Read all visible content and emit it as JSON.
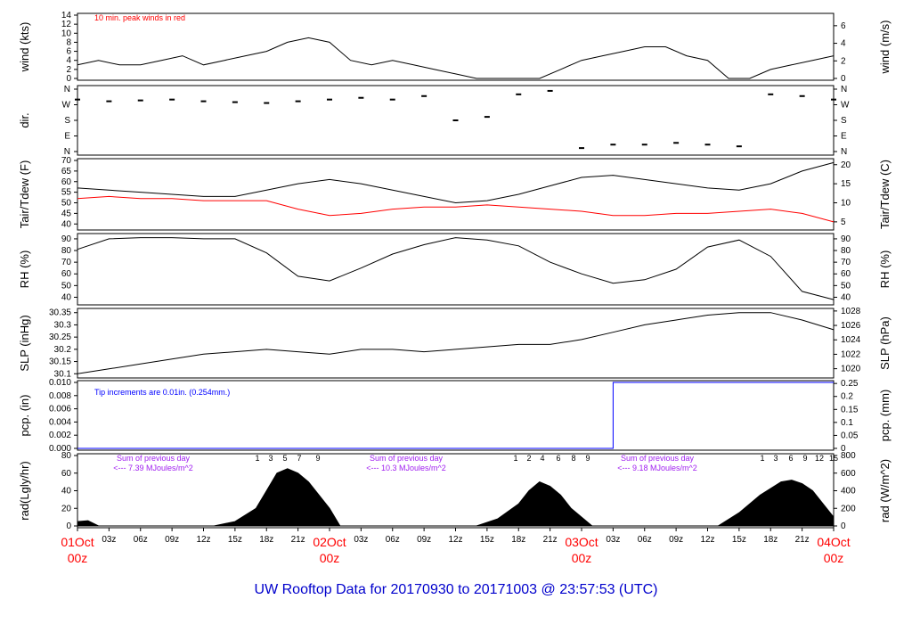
{
  "footer_title": "UW Rooftop Data for 20170930  to  20171003 @ 23:57:53  (UTC)",
  "colors": {
    "accent_red": "#ff0000",
    "precip_blue": "#0000ff",
    "rad_purple": "#a020f0",
    "title_blue": "#0000cc"
  },
  "chart_data": [
    {
      "type": "line",
      "panel": "wind",
      "ylabel": "wind (kts)",
      "ylabel_right": "wind (m/s)",
      "ylim": [
        0,
        14
      ],
      "yticks": [
        0,
        2,
        4,
        6,
        8,
        10,
        12,
        14
      ],
      "yticks_right": [
        0,
        2,
        4,
        6
      ],
      "annotation": "10 min. peak winds in red",
      "series": [
        {
          "hours": [
            0,
            2,
            4,
            6,
            8,
            10,
            12,
            14,
            16,
            18,
            20,
            22,
            24,
            26,
            28,
            30,
            32,
            34,
            36,
            38,
            40,
            42,
            44,
            46,
            48,
            50,
            52,
            54,
            56,
            58,
            60,
            62,
            64,
            66,
            68,
            70,
            72
          ],
          "values": [
            3,
            4,
            3,
            3,
            4,
            5,
            3,
            4,
            5,
            6,
            8,
            9,
            8,
            4,
            3,
            4,
            3,
            2,
            1,
            0,
            0,
            0,
            0,
            2,
            4,
            5,
            6,
            7,
            7,
            5,
            4,
            0,
            0,
            2,
            3,
            4,
            5
          ]
        }
      ]
    },
    {
      "type": "scatter",
      "panel": "dir",
      "ylabel": "dir.",
      "yticks_labels": [
        "N",
        "E",
        "S",
        "W",
        "N"
      ],
      "series": [
        {
          "hours": [
            0,
            3,
            6,
            9,
            12,
            15,
            18,
            21,
            24,
            27,
            30,
            33,
            36,
            39,
            42,
            45,
            48,
            51,
            54,
            57,
            60,
            63,
            66,
            69,
            72
          ],
          "values": [
            300,
            290,
            295,
            300,
            290,
            285,
            280,
            290,
            300,
            310,
            300,
            320,
            180,
            200,
            330,
            350,
            20,
            40,
            40,
            50,
            40,
            30,
            330,
            320,
            300
          ]
        }
      ]
    },
    {
      "type": "line",
      "panel": "temp",
      "ylabel": "Tair/Tdew (F)",
      "ylabel_right": "Tair/Tdew (C)",
      "ylim": [
        38,
        70
      ],
      "yticks": [
        40,
        45,
        50,
        55,
        60,
        65,
        70
      ],
      "yticks_right": [
        5,
        10,
        15,
        20
      ],
      "series": [
        {
          "hours": [
            0,
            3,
            6,
            9,
            12,
            15,
            18,
            21,
            24,
            27,
            30,
            33,
            36,
            39,
            42,
            45,
            48,
            51,
            54,
            57,
            60,
            63,
            66,
            69,
            72
          ],
          "values": [
            57,
            56,
            55,
            54,
            53,
            53,
            56,
            59,
            61,
            59,
            56,
            53,
            50,
            51,
            54,
            58,
            62,
            63,
            61,
            59,
            57,
            56,
            59,
            65,
            69
          ]
        },
        {
          "hours": [
            0,
            3,
            6,
            9,
            12,
            15,
            18,
            21,
            24,
            27,
            30,
            33,
            36,
            39,
            42,
            45,
            48,
            51,
            54,
            57,
            60,
            63,
            66,
            69,
            72
          ],
          "values": [
            52,
            53,
            52,
            52,
            51,
            51,
            51,
            47,
            44,
            45,
            47,
            48,
            48,
            49,
            48,
            47,
            46,
            44,
            44,
            45,
            45,
            46,
            47,
            45,
            41
          ]
        }
      ]
    },
    {
      "type": "line",
      "panel": "rh",
      "ylabel": "RH (%)",
      "ylabel_right": "RH (%)",
      "ylim": [
        35,
        93
      ],
      "yticks": [
        40,
        50,
        60,
        70,
        80,
        90
      ],
      "series": [
        {
          "hours": [
            0,
            3,
            6,
            9,
            12,
            15,
            18,
            21,
            24,
            27,
            30,
            33,
            36,
            39,
            42,
            45,
            48,
            51,
            54,
            57,
            60,
            63,
            66,
            69,
            72
          ],
          "values": [
            81,
            90,
            91,
            91,
            90,
            90,
            78,
            58,
            54,
            65,
            77,
            85,
            91,
            89,
            84,
            70,
            60,
            52,
            55,
            64,
            83,
            89,
            75,
            45,
            38
          ]
        }
      ]
    },
    {
      "type": "line",
      "panel": "slp",
      "ylabel": "SLP (inHg)",
      "ylabel_right": "SLP (hPa)",
      "ylim": [
        30.09,
        30.36
      ],
      "yticks": [
        30.1,
        30.15,
        30.2,
        30.25,
        30.3,
        30.35
      ],
      "yticks_right": [
        1020,
        1022,
        1024,
        1026,
        1028
      ],
      "series": [
        {
          "hours": [
            0,
            3,
            6,
            9,
            12,
            15,
            18,
            21,
            24,
            27,
            30,
            33,
            36,
            39,
            42,
            45,
            48,
            51,
            54,
            57,
            60,
            63,
            66,
            69,
            72
          ],
          "values": [
            30.1,
            30.12,
            30.14,
            30.16,
            30.18,
            30.19,
            30.2,
            30.19,
            30.18,
            30.2,
            30.2,
            30.19,
            30.2,
            30.21,
            30.22,
            30.22,
            30.24,
            30.27,
            30.3,
            30.32,
            30.34,
            30.35,
            30.35,
            30.32,
            30.28
          ]
        }
      ]
    },
    {
      "type": "line",
      "panel": "pcp",
      "ylabel": "pcp. (in)",
      "ylabel_right": "pcp. (mm)",
      "ylim": [
        0,
        0.01
      ],
      "yticks": [
        "0.000",
        "0.002",
        "0.004",
        "0.006",
        "0.008",
        "0.010"
      ],
      "yticks_right": [
        "0",
        "0.05",
        "0.1",
        "0.15",
        "0.2",
        "0.25"
      ],
      "annotation": "Tip increments are 0.01in. (0.254mm.)",
      "series": [
        {
          "hours": [
            0,
            51,
            51,
            72
          ],
          "values": [
            0,
            0,
            0.01,
            0.01
          ]
        }
      ]
    },
    {
      "type": "area",
      "panel": "rad",
      "ylabel": "rad(Lgly/hr)",
      "ylabel_right": "rad (W/m^2)",
      "ylim": [
        0,
        80
      ],
      "yticks": [
        0,
        20,
        40,
        60,
        80
      ],
      "yticks_right": [
        0,
        200,
        400,
        600,
        800
      ],
      "daily_notes": [
        {
          "label": "Sum of previous day",
          "value": "<--- 7.39 MJoules/m^2"
        },
        {
          "label": "Sum of previous day",
          "value": "<--- 10.3 MJoules/m^2"
        },
        {
          "label": "Sum of previous day",
          "value": "<--- 9.18 MJoules/m^2"
        }
      ],
      "hour_marks": [
        "1",
        "3",
        "5",
        "7",
        "9",
        "1",
        "2",
        "4",
        "6",
        "8",
        "9",
        "1",
        "3",
        "6",
        "9",
        "12",
        "15"
      ],
      "series": [
        {
          "hours": [
            0,
            1,
            2,
            13,
            15,
            17,
            18,
            19,
            20,
            21,
            22,
            23,
            24,
            25,
            38,
            40,
            42,
            43,
            44,
            45,
            46,
            47,
            48,
            49,
            61,
            63,
            65,
            67,
            68,
            69,
            70,
            71,
            72
          ],
          "values": [
            5,
            6,
            0,
            0,
            5,
            20,
            40,
            60,
            65,
            60,
            50,
            35,
            20,
            0,
            0,
            8,
            25,
            40,
            50,
            45,
            35,
            20,
            10,
            0,
            0,
            15,
            35,
            50,
            52,
            48,
            40,
            25,
            10
          ]
        }
      ]
    }
  ],
  "xaxis": {
    "tick_labels": [
      "03z",
      "06z",
      "09z",
      "12z",
      "15z",
      "18z",
      "21z",
      "03z",
      "06z",
      "09z",
      "12z",
      "15z",
      "18z",
      "21z",
      "03z",
      "06z",
      "09z",
      "12z",
      "15z",
      "18z",
      "21z"
    ],
    "day_labels": [
      {
        "day": "01Oct",
        "hour": "00z"
      },
      {
        "day": "02Oct",
        "hour": "00z"
      },
      {
        "day": "03Oct",
        "hour": "00z"
      },
      {
        "day": "04Oct",
        "hour": "00z"
      }
    ]
  }
}
